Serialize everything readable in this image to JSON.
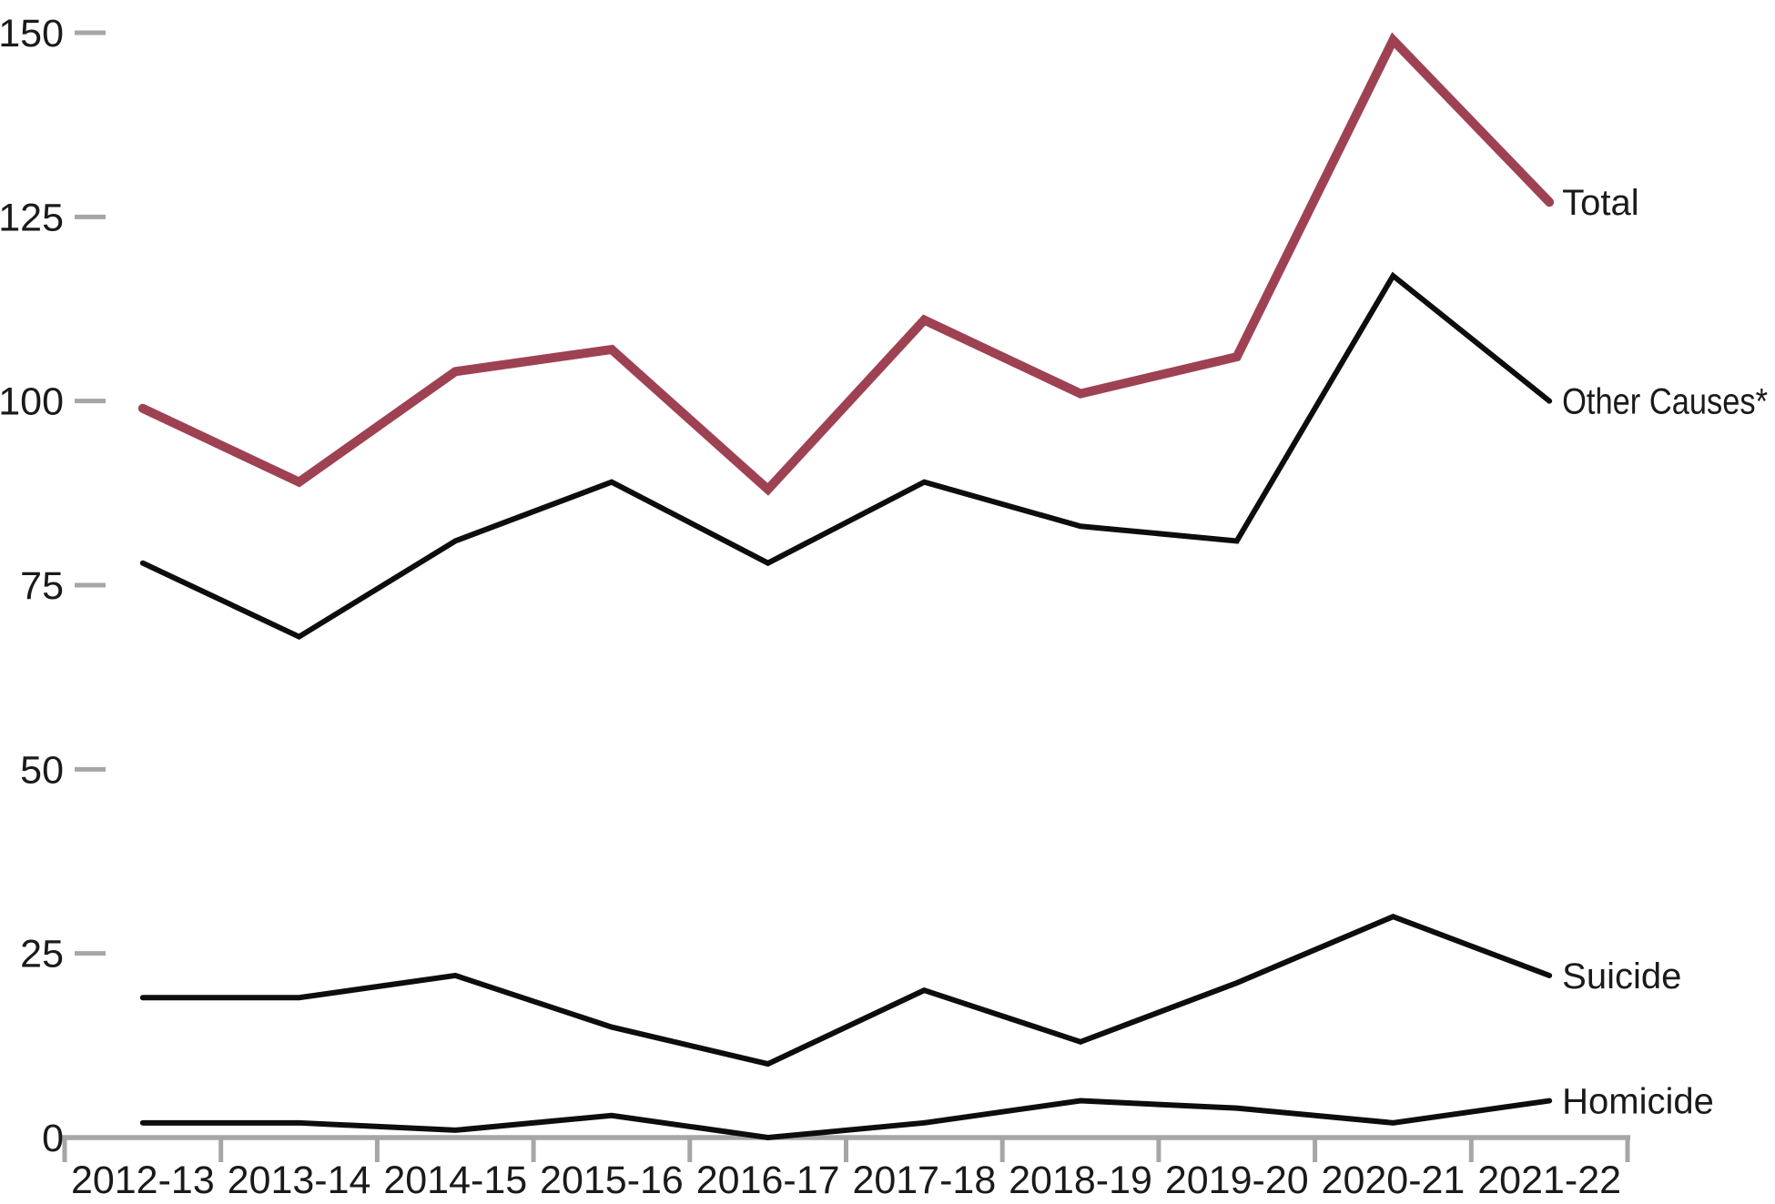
{
  "chart_data": {
    "type": "line",
    "title": "",
    "xlabel": "",
    "ylabel": "",
    "categories": [
      "2012-13",
      "2013-14",
      "2014-15",
      "2015-16",
      "2016-17",
      "2017-18",
      "2018-19",
      "2019-20",
      "2020-21",
      "2021-22"
    ],
    "series": [
      {
        "name": "Total",
        "values": [
          99,
          89,
          104,
          107,
          88,
          111,
          101,
          106,
          149,
          127
        ],
        "color": "#9E4253",
        "stroke_width": 10
      },
      {
        "name": "Other Causes*",
        "values": [
          78,
          68,
          81,
          89,
          78,
          89,
          83,
          81,
          117,
          100
        ],
        "color": "#0d0d0d",
        "stroke_width": 6
      },
      {
        "name": "Suicide",
        "values": [
          19,
          19,
          22,
          15,
          10,
          20,
          13,
          21,
          30,
          22
        ],
        "color": "#0d0d0d",
        "stroke_width": 6
      },
      {
        "name": "Homicide",
        "values": [
          2,
          2,
          1,
          3,
          0,
          2,
          5,
          4,
          2,
          5
        ],
        "color": "#0d0d0d",
        "stroke_width": 6
      }
    ],
    "ylim": [
      0,
      150
    ],
    "yticks": [
      0,
      25,
      50,
      75,
      100,
      125,
      150
    ],
    "ytick_labels": [
      "0",
      "25",
      "50",
      "75",
      "100",
      "125",
      "150"
    ],
    "grid": false,
    "legend_position": "labels-at-line-ends-right",
    "axis_color": "#A6A6A6",
    "text_color": "#1a1a1a"
  }
}
